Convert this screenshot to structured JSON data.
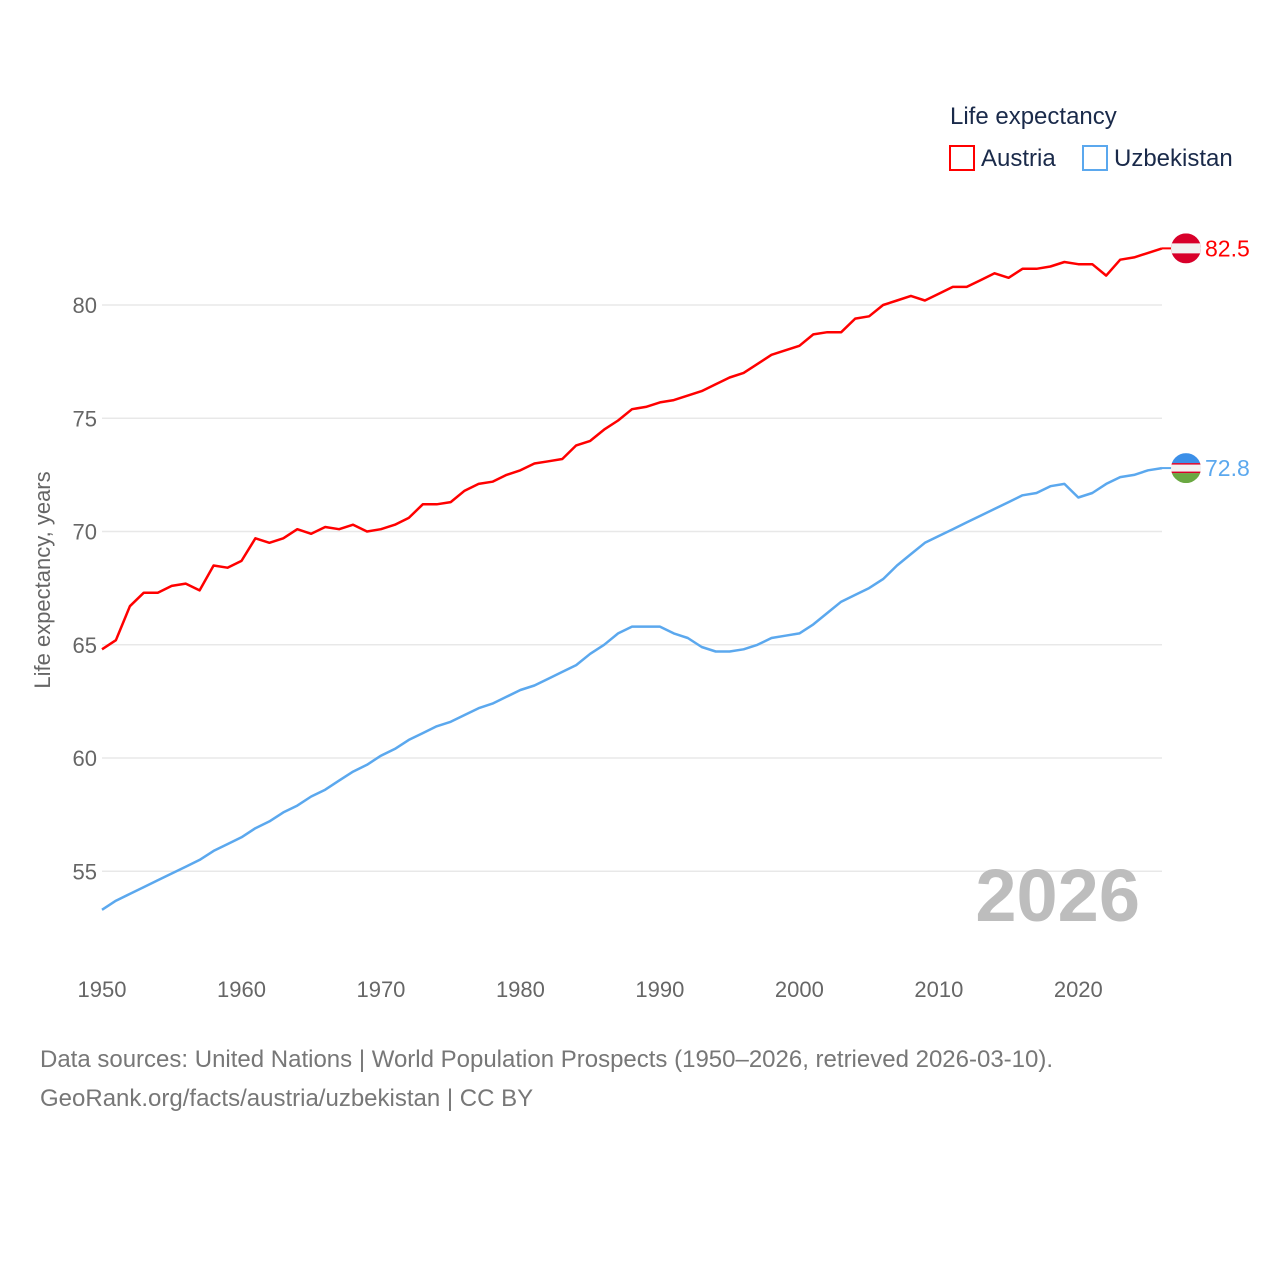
{
  "chart_data": {
    "type": "line",
    "ylabel": "Life expectancy, years",
    "xlabel": "",
    "legend_title": "Life expectancy",
    "legend_position": "top-right",
    "year_label": "2026",
    "xlim": [
      1950,
      2026
    ],
    "ylim": [
      52.5,
      83.5
    ],
    "x_ticks": [
      1950,
      1960,
      1970,
      1980,
      1990,
      2000,
      2010,
      2020
    ],
    "y_ticks": [
      55,
      60,
      65,
      70,
      75,
      80
    ],
    "grid": true,
    "x_start": 1950,
    "series": [
      {
        "name": "Austria",
        "color": "#ff0000",
        "end_label": "82.5",
        "flag": "austria-flag",
        "values": [
          64.8,
          65.2,
          66.7,
          67.3,
          67.3,
          67.6,
          67.7,
          67.4,
          68.5,
          68.4,
          68.7,
          69.7,
          69.5,
          69.7,
          70.1,
          69.9,
          70.2,
          70.1,
          70.3,
          70.0,
          70.1,
          70.3,
          70.6,
          71.2,
          71.2,
          71.3,
          71.8,
          72.1,
          72.2,
          72.5,
          72.7,
          73.0,
          73.1,
          73.2,
          73.8,
          74.0,
          74.5,
          74.9,
          75.4,
          75.5,
          75.7,
          75.8,
          76.0,
          76.2,
          76.5,
          76.8,
          77.0,
          77.4,
          77.8,
          78.0,
          78.2,
          78.7,
          78.8,
          78.8,
          79.4,
          79.5,
          80.0,
          80.2,
          80.4,
          80.2,
          80.5,
          80.8,
          80.8,
          81.1,
          81.4,
          81.2,
          81.6,
          81.6,
          81.7,
          81.9,
          81.8,
          81.8,
          81.3,
          82.0,
          82.1,
          82.3,
          82.5
        ]
      },
      {
        "name": "Uzbekistan",
        "color": "#5ba8ee",
        "end_label": "72.8",
        "flag": "uzbekistan-flag",
        "values": [
          53.3,
          53.7,
          54.0,
          54.3,
          54.6,
          54.9,
          55.2,
          55.5,
          55.9,
          56.2,
          56.5,
          56.9,
          57.2,
          57.6,
          57.9,
          58.3,
          58.6,
          59.0,
          59.4,
          59.7,
          60.1,
          60.4,
          60.8,
          61.1,
          61.4,
          61.6,
          61.9,
          62.2,
          62.4,
          62.7,
          63.0,
          63.2,
          63.5,
          63.8,
          64.1,
          64.6,
          65.0,
          65.5,
          65.8,
          65.8,
          65.8,
          65.5,
          65.3,
          64.9,
          64.7,
          64.7,
          64.8,
          65.0,
          65.3,
          65.4,
          65.5,
          65.9,
          66.4,
          66.9,
          67.2,
          67.5,
          67.9,
          68.5,
          69.0,
          69.5,
          69.8,
          70.1,
          70.4,
          70.7,
          71.0,
          71.3,
          71.6,
          71.7,
          72.0,
          72.1,
          71.5,
          71.7,
          72.1,
          72.4,
          72.5,
          72.7,
          72.8
        ]
      }
    ]
  },
  "footer": {
    "line1": "Data sources: United Nations | World Population Prospects (1950–2026, retrieved 2026-03-10).",
    "line2": "GeoRank.org/facts/austria/uzbekistan | CC BY"
  }
}
